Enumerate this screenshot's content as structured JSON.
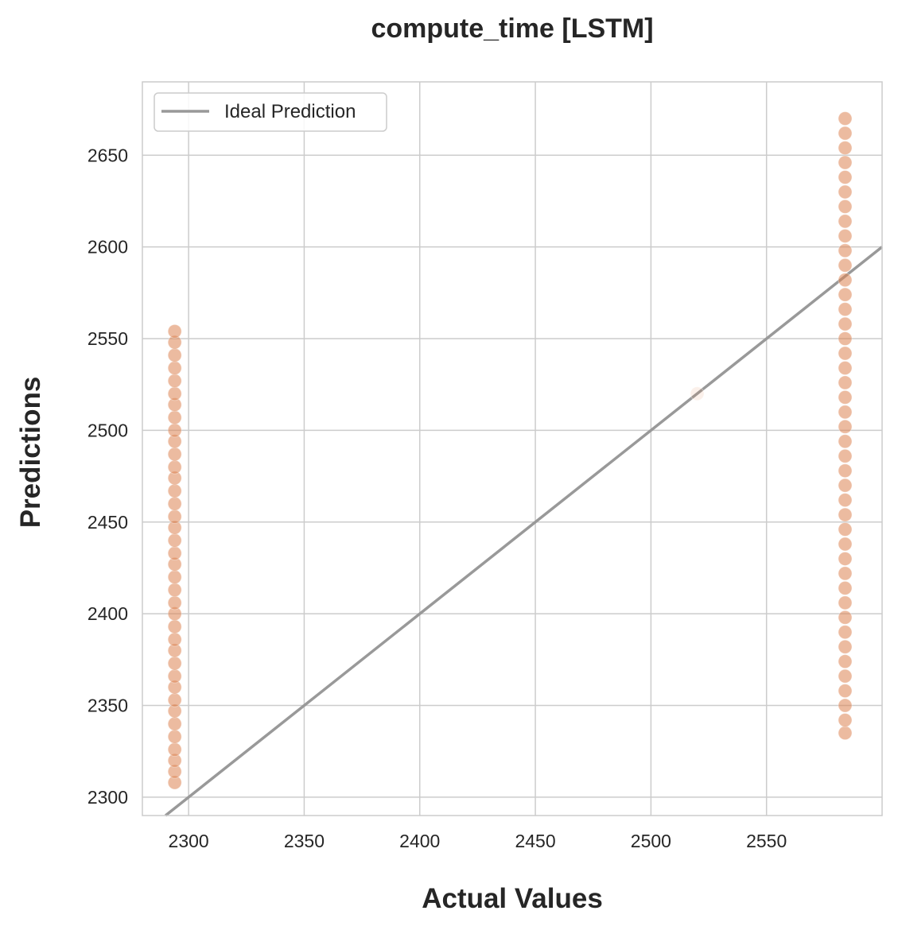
{
  "chart_data": {
    "type": "scatter",
    "title": "compute_time [LSTM]",
    "xlabel": "Actual Values",
    "ylabel": "Predictions",
    "xlim": [
      2280,
      2600
    ],
    "ylim": [
      2290,
      2690
    ],
    "xticks": [
      2300,
      2350,
      2400,
      2450,
      2500,
      2550
    ],
    "yticks": [
      2300,
      2350,
      2400,
      2450,
      2500,
      2550,
      2600,
      2650
    ],
    "grid": true,
    "legend": {
      "placement": "top-left",
      "entries": [
        "Ideal Prediction"
      ]
    },
    "ideal_line": {
      "name": "Ideal Prediction",
      "color": "#999999"
    },
    "point_color": "#dd8452",
    "series": [
      {
        "points": [
          {
            "x": 2294,
            "y": 2308
          },
          {
            "x": 2294,
            "y": 2314
          },
          {
            "x": 2294,
            "y": 2320
          },
          {
            "x": 2294,
            "y": 2326
          },
          {
            "x": 2294,
            "y": 2333
          },
          {
            "x": 2294,
            "y": 2340
          },
          {
            "x": 2294,
            "y": 2347
          },
          {
            "x": 2294,
            "y": 2353
          },
          {
            "x": 2294,
            "y": 2360
          },
          {
            "x": 2294,
            "y": 2366
          },
          {
            "x": 2294,
            "y": 2373
          },
          {
            "x": 2294,
            "y": 2380
          },
          {
            "x": 2294,
            "y": 2386
          },
          {
            "x": 2294,
            "y": 2393
          },
          {
            "x": 2294,
            "y": 2400
          },
          {
            "x": 2294,
            "y": 2406
          },
          {
            "x": 2294,
            "y": 2413
          },
          {
            "x": 2294,
            "y": 2420
          },
          {
            "x": 2294,
            "y": 2427
          },
          {
            "x": 2294,
            "y": 2433
          },
          {
            "x": 2294,
            "y": 2440
          },
          {
            "x": 2294,
            "y": 2447
          },
          {
            "x": 2294,
            "y": 2453
          },
          {
            "x": 2294,
            "y": 2460
          },
          {
            "x": 2294,
            "y": 2467
          },
          {
            "x": 2294,
            "y": 2474
          },
          {
            "x": 2294,
            "y": 2480
          },
          {
            "x": 2294,
            "y": 2487
          },
          {
            "x": 2294,
            "y": 2494
          },
          {
            "x": 2294,
            "y": 2500
          },
          {
            "x": 2294,
            "y": 2507
          },
          {
            "x": 2294,
            "y": 2514
          },
          {
            "x": 2294,
            "y": 2520
          },
          {
            "x": 2294,
            "y": 2527
          },
          {
            "x": 2294,
            "y": 2534
          },
          {
            "x": 2294,
            "y": 2541
          },
          {
            "x": 2294,
            "y": 2548
          },
          {
            "x": 2294,
            "y": 2554
          },
          {
            "x": 2520,
            "y": 2520
          },
          {
            "x": 2584,
            "y": 2335
          },
          {
            "x": 2584,
            "y": 2342
          },
          {
            "x": 2584,
            "y": 2350
          },
          {
            "x": 2584,
            "y": 2358
          },
          {
            "x": 2584,
            "y": 2366
          },
          {
            "x": 2584,
            "y": 2374
          },
          {
            "x": 2584,
            "y": 2382
          },
          {
            "x": 2584,
            "y": 2390
          },
          {
            "x": 2584,
            "y": 2398
          },
          {
            "x": 2584,
            "y": 2406
          },
          {
            "x": 2584,
            "y": 2414
          },
          {
            "x": 2584,
            "y": 2422
          },
          {
            "x": 2584,
            "y": 2430
          },
          {
            "x": 2584,
            "y": 2438
          },
          {
            "x": 2584,
            "y": 2446
          },
          {
            "x": 2584,
            "y": 2454
          },
          {
            "x": 2584,
            "y": 2462
          },
          {
            "x": 2584,
            "y": 2470
          },
          {
            "x": 2584,
            "y": 2478
          },
          {
            "x": 2584,
            "y": 2486
          },
          {
            "x": 2584,
            "y": 2494
          },
          {
            "x": 2584,
            "y": 2502
          },
          {
            "x": 2584,
            "y": 2510
          },
          {
            "x": 2584,
            "y": 2518
          },
          {
            "x": 2584,
            "y": 2526
          },
          {
            "x": 2584,
            "y": 2534
          },
          {
            "x": 2584,
            "y": 2542
          },
          {
            "x": 2584,
            "y": 2550
          },
          {
            "x": 2584,
            "y": 2558
          },
          {
            "x": 2584,
            "y": 2566
          },
          {
            "x": 2584,
            "y": 2574
          },
          {
            "x": 2584,
            "y": 2582
          },
          {
            "x": 2584,
            "y": 2590
          },
          {
            "x": 2584,
            "y": 2598
          },
          {
            "x": 2584,
            "y": 2606
          },
          {
            "x": 2584,
            "y": 2614
          },
          {
            "x": 2584,
            "y": 2622
          },
          {
            "x": 2584,
            "y": 2630
          },
          {
            "x": 2584,
            "y": 2638
          },
          {
            "x": 2584,
            "y": 2646
          },
          {
            "x": 2584,
            "y": 2654
          },
          {
            "x": 2584,
            "y": 2662
          },
          {
            "x": 2584,
            "y": 2670
          }
        ]
      }
    ]
  }
}
